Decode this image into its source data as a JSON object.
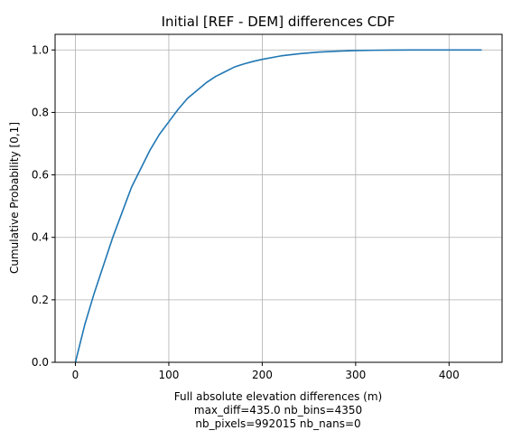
{
  "chart_data": {
    "type": "line",
    "title": "Initial [REF - DEM] differences CDF",
    "xlabel": "Full absolute elevation differences (m)",
    "xlabel_lines": [
      "max_diff=435.0 nb_bins=4350",
      "nb_pixels=992015 nb_nans=0"
    ],
    "ylabel": "Cumulative Probability [0,1]",
    "xlim": [
      -21.75,
      456.75
    ],
    "ylim": [
      0.0,
      1.05
    ],
    "xticks": [
      0,
      100,
      200,
      300,
      400
    ],
    "xtick_labels": [
      "0",
      "100",
      "200",
      "300",
      "400"
    ],
    "yticks": [
      0.0,
      0.2,
      0.4,
      0.6,
      0.8,
      1.0
    ],
    "ytick_labels": [
      "0.0",
      "0.2",
      "0.4",
      "0.6",
      "0.8",
      "1.0"
    ],
    "grid": true,
    "series": [
      {
        "color": "#1f77b4",
        "x": [
          0,
          10,
          20,
          30,
          40,
          50,
          60,
          70,
          80,
          90,
          100,
          110,
          120,
          130,
          140,
          150,
          160,
          170,
          180,
          190,
          200,
          220,
          240,
          260,
          280,
          300,
          320,
          340,
          360,
          380,
          400,
          420,
          435
        ],
        "y": [
          0.0,
          0.12,
          0.22,
          0.31,
          0.4,
          0.48,
          0.56,
          0.62,
          0.68,
          0.73,
          0.77,
          0.81,
          0.845,
          0.87,
          0.895,
          0.915,
          0.93,
          0.945,
          0.955,
          0.963,
          0.97,
          0.981,
          0.988,
          0.993,
          0.996,
          0.998,
          0.999,
          0.9995,
          1.0,
          1.0,
          1.0,
          1.0,
          1.0
        ]
      }
    ]
  }
}
